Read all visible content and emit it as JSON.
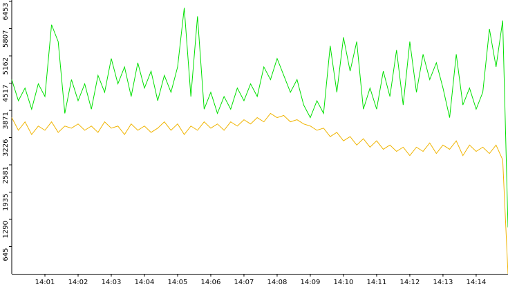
{
  "chart_data": {
    "type": "line",
    "x": [
      0,
      0.2,
      0.4,
      0.6,
      0.8,
      1.0,
      1.2,
      1.4,
      1.6,
      1.8,
      2.0,
      2.2,
      2.4,
      2.6,
      2.8,
      3.0,
      3.2,
      3.4,
      3.6,
      3.8,
      4.0,
      4.2,
      4.4,
      4.6,
      4.8,
      5.0,
      5.2,
      5.4,
      5.6,
      5.8,
      6.0,
      6.2,
      6.4,
      6.6,
      6.8,
      7.0,
      7.2,
      7.4,
      7.6,
      7.8,
      8.0,
      8.2,
      8.4,
      8.6,
      8.8,
      9.0,
      9.2,
      9.4,
      9.6,
      9.8,
      10.0,
      10.2,
      10.4,
      10.6,
      10.8,
      11.0,
      11.2,
      11.4,
      11.6,
      11.8,
      12.0,
      12.2,
      12.4,
      12.6,
      12.8,
      13.0,
      13.2,
      13.4,
      13.6,
      13.8,
      14.0,
      14.2,
      14.4,
      14.6,
      14.8,
      14.96
    ],
    "series": [
      {
        "color": "#00e000",
        "values": [
          4600,
          4100,
          4400,
          3900,
          4500,
          4200,
          5900,
          5500,
          3800,
          4600,
          4100,
          4500,
          3900,
          4700,
          4300,
          5100,
          4500,
          4900,
          4200,
          5000,
          4400,
          4800,
          4100,
          4700,
          4300,
          4900,
          6300,
          4200,
          6100,
          3900,
          4300,
          3800,
          4200,
          3900,
          4400,
          4100,
          4500,
          4200,
          4900,
          4600,
          5100,
          4700,
          4300,
          4600,
          4000,
          3700,
          4100,
          3800,
          5400,
          4300,
          5600,
          4800,
          5500,
          3900,
          4400,
          3900,
          4800,
          4200,
          5300,
          4000,
          5500,
          4300,
          5200,
          4600,
          5000,
          4400,
          3700,
          5200,
          4000,
          4400,
          3900,
          4300,
          5800,
          4900,
          6000,
          1100
        ]
      },
      {
        "color": "#f0b400",
        "values": [
          3700,
          3400,
          3600,
          3300,
          3500,
          3400,
          3600,
          3350,
          3500,
          3450,
          3550,
          3400,
          3500,
          3350,
          3600,
          3450,
          3500,
          3300,
          3550,
          3400,
          3500,
          3350,
          3450,
          3600,
          3400,
          3550,
          3300,
          3500,
          3400,
          3600,
          3450,
          3550,
          3400,
          3600,
          3500,
          3650,
          3550,
          3700,
          3600,
          3800,
          3700,
          3750,
          3600,
          3650,
          3550,
          3500,
          3400,
          3450,
          3250,
          3350,
          3150,
          3250,
          3050,
          3200,
          3000,
          3150,
          2950,
          3050,
          2900,
          3000,
          2800,
          3000,
          2900,
          3100,
          2850,
          3050,
          2950,
          3150,
          2800,
          3050,
          2900,
          3000,
          2850,
          3050,
          2700,
          0
        ]
      }
    ],
    "xlim": [
      0,
      14.96
    ],
    "xticks": [
      {
        "value": 1,
        "label": "14:01"
      },
      {
        "value": 2,
        "label": "14:02"
      },
      {
        "value": 3,
        "label": "14:03"
      },
      {
        "value": 4,
        "label": "14:04"
      },
      {
        "value": 5,
        "label": "14:05"
      },
      {
        "value": 6,
        "label": "14:06"
      },
      {
        "value": 7,
        "label": "14:07"
      },
      {
        "value": 8,
        "label": "14:08"
      },
      {
        "value": 9,
        "label": "14:09"
      },
      {
        "value": 10,
        "label": "14:10"
      },
      {
        "value": 11,
        "label": "14:11"
      },
      {
        "value": 12,
        "label": "14:12"
      },
      {
        "value": 13,
        "label": "14:13"
      },
      {
        "value": 14,
        "label": "14:14"
      }
    ],
    "ylim": [
      0,
      6453
    ],
    "yticks": [
      645,
      1290,
      1935,
      2581,
      3226,
      3871,
      4517,
      5162,
      5807,
      6453
    ],
    "grid": false
  }
}
